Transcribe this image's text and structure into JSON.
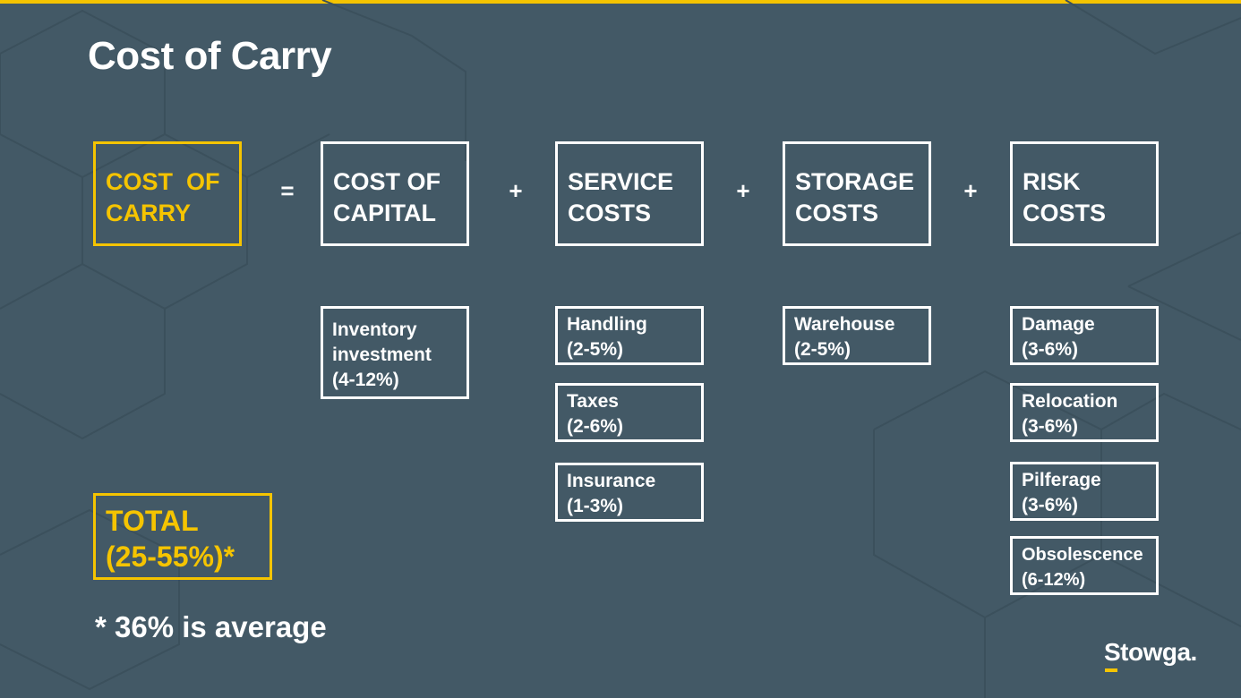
{
  "title": "Cost of Carry",
  "colors": {
    "background": "#435966",
    "accent": "#f5c400",
    "text": "#ffffff"
  },
  "equation": {
    "result": {
      "line1": "COST  OF",
      "line2": "CARRY"
    },
    "operators": [
      "=",
      "+",
      "+",
      "+"
    ],
    "components": [
      {
        "line1": "COST OF",
        "line2": "CAPITAL"
      },
      {
        "line1": "SERVICE",
        "line2": "COSTS"
      },
      {
        "line1": "STORAGE",
        "line2": "COSTS"
      },
      {
        "line1": "RISK",
        "line2": "COSTS"
      }
    ]
  },
  "breakdown": {
    "capital": [
      {
        "line1": "Inventory",
        "line2": "investment",
        "line3": "(4-12%)"
      }
    ],
    "service": [
      {
        "line1": "Handling",
        "line2": "(2-5%)"
      },
      {
        "line1": "Taxes",
        "line2": "(2-6%)"
      },
      {
        "line1": "Insurance",
        "line2": "(1-3%)"
      }
    ],
    "storage": [
      {
        "line1": "Warehouse",
        "line2": "(2-5%)"
      }
    ],
    "risk": [
      {
        "line1": "Damage",
        "line2": "(3-6%)"
      },
      {
        "line1": "Relocation",
        "line2": "(3-6%)"
      },
      {
        "line1": "Pilferage",
        "line2": "(3-6%)"
      },
      {
        "line1": "Obsolescence",
        "line2": "(6-12%)"
      }
    ]
  },
  "total": {
    "line1": "TOTAL",
    "line2": "(25-55%)*"
  },
  "footnote": "* 36% is average",
  "logo": "Stowga."
}
